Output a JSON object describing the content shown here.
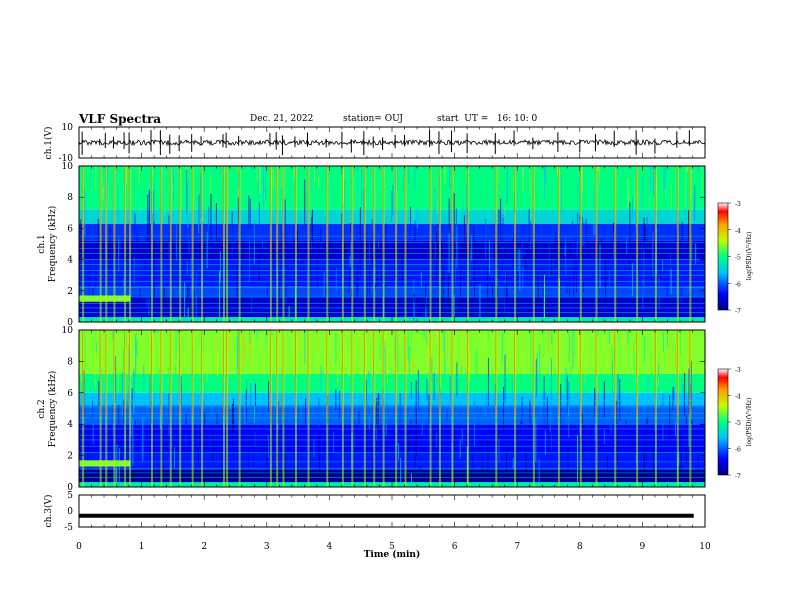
{
  "header": {
    "title": "VLF Spectra",
    "date": "Dec. 21, 2022",
    "station": "station= OUJ",
    "start": "start  UT =   16: 10: 0"
  },
  "chart_data": [
    {
      "type": "line",
      "name": "waveform-ch1",
      "ylabel": "ch.1(V)",
      "ylim": [
        -10,
        10
      ],
      "ytick_labels": [
        "10",
        "-10"
      ],
      "xlim": [
        0,
        10
      ],
      "xlabel": ""
    },
    {
      "type": "heatmap",
      "name": "spectrogram-ch1",
      "ylabel": "ch.1\nFrequency (kHz)",
      "ylabel_lines": [
        "ch.1",
        "Frequency (kHz)"
      ],
      "ylim": [
        0,
        10
      ],
      "ytick_labels": [
        "0",
        "2",
        "4",
        "6",
        "8",
        "10"
      ],
      "xlim": [
        0,
        10
      ],
      "colorbar": {
        "label": "log(PSD)(V²/Hz)",
        "range": [
          -7,
          -3
        ],
        "tick_labels": [
          "-3",
          "-4",
          "-5",
          "-6",
          "-7"
        ]
      },
      "bands": [
        {
          "f0": 0.0,
          "f1": 0.3,
          "level": -5.2
        },
        {
          "f0": 0.3,
          "f1": 1.6,
          "level": -6.6
        },
        {
          "f0": 1.6,
          "f1": 2.3,
          "level": -6.1
        },
        {
          "f0": 2.3,
          "f1": 4.0,
          "level": -6.3
        },
        {
          "f0": 4.0,
          "f1": 5.2,
          "level": -6.6
        },
        {
          "f0": 5.2,
          "f1": 6.3,
          "level": -6.2
        },
        {
          "f0": 6.3,
          "f1": 7.2,
          "level": -5.4
        },
        {
          "f0": 7.2,
          "f1": 10.0,
          "level": -5.0
        }
      ],
      "lines_khz": [
        0.3,
        0.6,
        0.9,
        1.2,
        1.6,
        2.2,
        2.6,
        3.0,
        3.3,
        3.7,
        4.0,
        4.4,
        4.7,
        5.1,
        5.5,
        6.4
      ],
      "patch": {
        "t0": 0.0,
        "t1": 0.82,
        "f0": 1.3,
        "f1": 1.7,
        "level": -4.6
      },
      "bursts_min": [
        0.05,
        0.33,
        0.42,
        0.55,
        0.72,
        0.8,
        1.15,
        1.3,
        1.45,
        1.6,
        1.8,
        1.95,
        2.3,
        2.35,
        2.55,
        3.05,
        3.15,
        3.25,
        3.45,
        3.65,
        3.95,
        4.2,
        4.35,
        4.55,
        4.7,
        4.85,
        5.05,
        5.2,
        5.6,
        5.75,
        5.95,
        6.2,
        6.65,
        6.95,
        7.25,
        7.65,
        8.0,
        8.25,
        8.55,
        8.9,
        9.2,
        9.55,
        9.75
      ]
    },
    {
      "type": "heatmap",
      "name": "spectrogram-ch2",
      "ylabel": "ch.2\nFrequency (kHz)",
      "ylabel_lines": [
        "ch.2",
        "Frequency (kHz)"
      ],
      "ylim": [
        0,
        10
      ],
      "ytick_labels": [
        "0",
        "2",
        "4",
        "6",
        "8",
        "10"
      ],
      "xlim": [
        0,
        10
      ],
      "colorbar": {
        "label": "log(PSD)(V²/Hz)",
        "range": [
          -7,
          -3
        ],
        "tick_labels": [
          "-3",
          "-4",
          "-5",
          "-6",
          "-7"
        ]
      },
      "bands": [
        {
          "f0": 0.0,
          "f1": 0.3,
          "level": -5.2
        },
        {
          "f0": 0.3,
          "f1": 1.1,
          "level": -6.9
        },
        {
          "f0": 1.1,
          "f1": 2.2,
          "level": -6.3
        },
        {
          "f0": 2.2,
          "f1": 4.0,
          "level": -6.4
        },
        {
          "f0": 4.0,
          "f1": 5.2,
          "level": -6.0
        },
        {
          "f0": 5.2,
          "f1": 6.0,
          "level": -5.6
        },
        {
          "f0": 6.0,
          "f1": 7.2,
          "level": -5.0
        },
        {
          "f0": 7.2,
          "f1": 10.0,
          "level": -4.6
        }
      ],
      "lines_khz": [
        0.3,
        0.6,
        0.9,
        1.2,
        1.6,
        2.2,
        2.6,
        3.0,
        3.3,
        3.7,
        4.0,
        4.4,
        4.7,
        5.1,
        5.5
      ],
      "patch": {
        "t0": 0.0,
        "t1": 0.82,
        "f0": 1.3,
        "f1": 1.7,
        "level": -4.6
      },
      "bursts_min": [
        0.05,
        0.33,
        0.42,
        0.55,
        0.72,
        0.8,
        1.15,
        1.3,
        1.45,
        1.6,
        1.8,
        1.95,
        2.3,
        2.35,
        2.55,
        3.05,
        3.15,
        3.25,
        3.45,
        3.65,
        3.95,
        4.2,
        4.35,
        4.55,
        4.7,
        4.85,
        5.05,
        5.2,
        5.6,
        5.75,
        5.95,
        6.2,
        6.65,
        6.95,
        7.25,
        7.65,
        8.0,
        8.25,
        8.55,
        8.9,
        9.2,
        9.55,
        9.75
      ]
    },
    {
      "type": "line",
      "name": "waveform-ch3",
      "ylabel": "ch.3(V)",
      "ylim": [
        -5,
        5
      ],
      "ytick_labels": [
        "5",
        "0",
        "-5"
      ],
      "xlim": [
        0,
        10
      ],
      "xlabel": "Time  (min)",
      "xtick_labels": [
        "0",
        "1",
        "2",
        "3",
        "4",
        "5",
        "6",
        "7",
        "8",
        "9",
        "10"
      ],
      "constant_value": -1.5
    }
  ]
}
